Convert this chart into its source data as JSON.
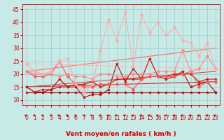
{
  "x": [
    0,
    1,
    2,
    3,
    4,
    5,
    6,
    7,
    8,
    9,
    10,
    11,
    12,
    13,
    14,
    15,
    16,
    17,
    18,
    19,
    20,
    21,
    22,
    23
  ],
  "series": [
    {
      "name": "flat_dark_red",
      "color": "#bb0000",
      "linewidth": 0.8,
      "marker": "*",
      "markersize": 3,
      "values": [
        13,
        13,
        13,
        13,
        13,
        13,
        13,
        13,
        13,
        13,
        13,
        13,
        13,
        13,
        13,
        13,
        13,
        13,
        13,
        13,
        13,
        13,
        13,
        13
      ]
    },
    {
      "name": "dark_red_varying",
      "color": "#bb0000",
      "linewidth": 0.8,
      "marker": "*",
      "markersize": 3,
      "values": [
        15,
        13,
        13,
        14,
        18,
        15,
        15,
        11,
        12,
        12,
        14,
        24,
        17,
        22,
        18,
        26,
        19,
        18,
        19,
        21,
        15,
        16,
        17,
        13
      ]
    },
    {
      "name": "dark_red_smooth",
      "color": "#cc1111",
      "linewidth": 0.8,
      "marker": "*",
      "markersize": 3,
      "values": [
        15,
        13,
        14,
        14,
        15,
        15,
        16,
        16,
        17,
        15,
        16,
        18,
        18,
        18,
        18,
        19,
        19,
        19,
        20,
        20,
        20,
        17,
        18,
        18
      ]
    },
    {
      "name": "medium_pink",
      "color": "#ff5555",
      "linewidth": 0.8,
      "marker": "D",
      "markersize": 2.5,
      "values": [
        21,
        19,
        19,
        20,
        25,
        19,
        16,
        15,
        15,
        16,
        16,
        16,
        16,
        14,
        18,
        19,
        19,
        19,
        19,
        20,
        21,
        15,
        17,
        17
      ]
    },
    {
      "name": "light_pink_lower",
      "color": "#ff8888",
      "linewidth": 0.8,
      "marker": "D",
      "markersize": 2.5,
      "values": [
        21,
        20,
        20,
        20,
        19,
        20,
        19,
        19,
        18,
        20,
        20,
        19,
        19,
        20,
        20,
        20,
        21,
        21,
        21,
        29,
        21,
        22,
        27,
        22
      ]
    },
    {
      "name": "lightest_pink_upper",
      "color": "#ffaaaa",
      "linewidth": 0.8,
      "marker": "D",
      "markersize": 2.5,
      "values": [
        24,
        21,
        20,
        21,
        25,
        26,
        16,
        13,
        16,
        29,
        41,
        33,
        44,
        23,
        43,
        36,
        40,
        35,
        38,
        33,
        32,
        27,
        32,
        22
      ]
    }
  ],
  "trend_lines": [
    {
      "x0": 0,
      "y0": 13,
      "x1": 23,
      "y1": 13,
      "color": "#bb0000",
      "linewidth": 0.8
    },
    {
      "x0": 0,
      "y0": 15,
      "x1": 23,
      "y1": 17,
      "color": "#cc2222",
      "linewidth": 0.8
    },
    {
      "x0": 0,
      "y0": 15,
      "x1": 23,
      "y1": 21,
      "color": "#dd4444",
      "linewidth": 0.8
    },
    {
      "x0": 0,
      "y0": 21,
      "x1": 23,
      "y1": 30,
      "color": "#ff6666",
      "linewidth": 0.8
    },
    {
      "x0": 0,
      "y0": 24,
      "x1": 23,
      "y1": 22,
      "color": "#ffbbbb",
      "linewidth": 0.8
    }
  ],
  "wind_arrows": "★",
  "xlabel": "Vent moyen/en rafales ( km/h )",
  "xlim": [
    -0.5,
    23.5
  ],
  "ylim": [
    8,
    47
  ],
  "yticks": [
    10,
    15,
    20,
    25,
    30,
    35,
    40,
    45
  ],
  "xticks": [
    0,
    1,
    2,
    3,
    4,
    5,
    6,
    7,
    8,
    9,
    10,
    11,
    12,
    13,
    14,
    15,
    16,
    17,
    18,
    19,
    20,
    21,
    22,
    23
  ],
  "bg_color": "#c8eae6",
  "grid_color": "#99cccc",
  "text_color": "#cc0000",
  "xlabel_fontsize": 6.5,
  "tick_fontsize": 5.5,
  "arrow_fontsize": 4.5
}
